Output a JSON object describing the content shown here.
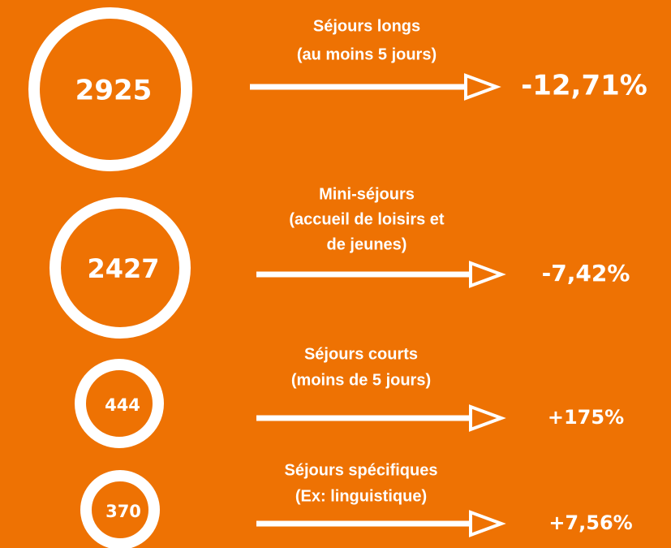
{
  "items": [
    {
      "value": "2925",
      "label": [
        "Séjours longs",
        "(au moins 5 jours)"
      ],
      "change": "-12,71%"
    },
    {
      "value": "2427",
      "label": [
        "Mini-séjours",
        "(accueil de loisirs et",
        "de jeunes)"
      ],
      "change": "-7,42%"
    },
    {
      "value": "444",
      "label": [
        "Séjours courts",
        "(moins de 5 jours)"
      ],
      "change": "+175%"
    },
    {
      "value": "370",
      "label": [
        "Séjours spécifiques",
        "(Ex: linguistique)"
      ],
      "change": "+7,56%"
    }
  ]
}
